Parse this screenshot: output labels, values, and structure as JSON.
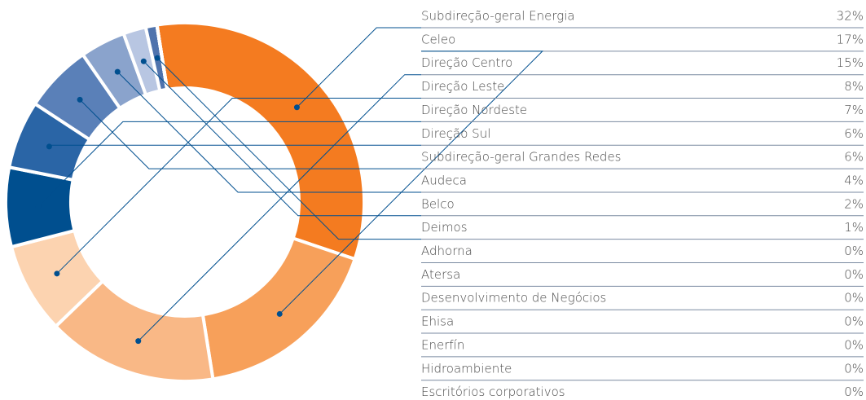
{
  "chart_data": {
    "type": "donut",
    "categories": [
      "Subdireção-geral Energia",
      "Celeo",
      "Direção Centro",
      "Direção Leste",
      "Direção Nordeste",
      "Direção Sul",
      "Subdireção-geral Grandes Redes",
      "Audeca",
      "Belco",
      "Deimos",
      "Adhorna",
      "Atersa",
      "Desenvolvimento de Negócios",
      "Ehisa",
      "Enerfín",
      "Hidroambiente",
      "Escritórios corporativos"
    ],
    "values": [
      32,
      17,
      15,
      8,
      7,
      6,
      6,
      4,
      2,
      1,
      0,
      0,
      0,
      0,
      0,
      0,
      0
    ],
    "value_labels": [
      "32%",
      "17%",
      "15%",
      "8%",
      "7%",
      "6%",
      "6%",
      "4%",
      "2%",
      "1%",
      "0%",
      "0%",
      "0%",
      "0%",
      "0%",
      "0%",
      "0%"
    ],
    "colors": [
      "#f47b20",
      "#f7a05a",
      "#f9b886",
      "#fcd3b0",
      "#004f8f",
      "#2a65a6",
      "#5a80b8",
      "#8aa3cc",
      "#b8c6e2",
      "#4f73ad",
      "#cccccc",
      "#cccccc",
      "#cccccc",
      "#cccccc",
      "#cccccc",
      "#cccccc",
      "#cccccc"
    ]
  }
}
